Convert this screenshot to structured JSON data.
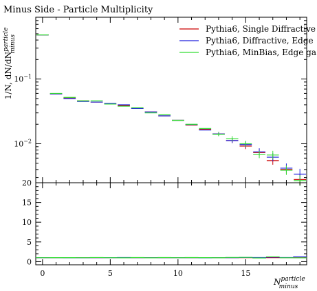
{
  "chart_data": [
    {
      "type": "line",
      "title": "Minus Side - Particle Multiplicity",
      "ylabel_parts": [
        "1/N, dN/dN",
        "particle",
        "minus"
      ],
      "xlabel_parts": [
        "N",
        "particle",
        "minus"
      ],
      "yscale": "log",
      "xlim": [
        -0.5,
        19.5
      ],
      "ylim": [
        0.0025,
        0.9
      ],
      "yticks": [
        {
          "value": 0.1,
          "base": "10",
          "exp": "−1"
        },
        {
          "value": 0.01,
          "base": "10",
          "exp": "−2"
        }
      ],
      "legend_position": "top-right",
      "series": [
        {
          "name": "Pythia6, Single Diffractive",
          "color": "#cc0000",
          "x": [
            0,
            1,
            2,
            3,
            4,
            5,
            6,
            7,
            8,
            9,
            10,
            11,
            12,
            13,
            14,
            15,
            16,
            17,
            18,
            19
          ],
          "y": [
            0.48,
            0.059,
            0.051,
            0.046,
            0.044,
            0.041,
            0.039,
            0.035,
            0.031,
            0.027,
            0.023,
            0.0195,
            0.0168,
            0.0142,
            0.0112,
            0.0092,
            0.0073,
            0.0055,
            0.004,
            0.0028
          ]
        },
        {
          "name": "Pythia6, Diffractive, Edge",
          "color": "#2222dd",
          "x": [
            0,
            1,
            2,
            3,
            4,
            5,
            6,
            7,
            8,
            9,
            10,
            11,
            12,
            13,
            14,
            15,
            16,
            17,
            18,
            19
          ],
          "y": [
            0.48,
            0.059,
            0.05,
            0.045,
            0.044,
            0.042,
            0.04,
            0.035,
            0.031,
            0.027,
            0.023,
            0.0198,
            0.0163,
            0.0142,
            0.0112,
            0.0097,
            0.0075,
            0.0062,
            0.0042,
            0.0034
          ]
        },
        {
          "name": "Pythia6, MinBias, Edge ga",
          "color": "#33dd33",
          "x": [
            0,
            1,
            2,
            3,
            4,
            5,
            6,
            7,
            8,
            9,
            10,
            11,
            12,
            13,
            14,
            15,
            16,
            17,
            18,
            19
          ],
          "y": [
            0.48,
            0.06,
            0.052,
            0.046,
            0.046,
            0.041,
            0.038,
            0.036,
            0.03,
            0.028,
            0.023,
            0.02,
            0.0172,
            0.014,
            0.012,
            0.01,
            0.0068,
            0.0067,
            0.0039,
            0.0027
          ]
        }
      ]
    },
    {
      "type": "line",
      "xlim": [
        -0.5,
        19.5
      ],
      "ylim": [
        -0.8,
        20
      ],
      "yticks": [
        0,
        5,
        10,
        15,
        20
      ],
      "xticks": [
        0,
        5,
        10,
        15
      ],
      "series": [
        {
          "name": "Pythia6, Single Diffractive",
          "color": "#cc0000",
          "x": [
            0,
            1,
            2,
            3,
            4,
            5,
            6,
            7,
            8,
            9,
            10,
            11,
            12,
            13,
            14,
            15,
            16,
            17,
            18,
            19
          ],
          "y": [
            1,
            1,
            1,
            1,
            1,
            1,
            1,
            1,
            1,
            1,
            1,
            1,
            1,
            1,
            1,
            1,
            1,
            1,
            1,
            1
          ]
        },
        {
          "name": "Pythia6, Diffractive, Edge",
          "color": "#2222dd",
          "x": [
            0,
            1,
            2,
            3,
            4,
            5,
            6,
            7,
            8,
            9,
            10,
            11,
            12,
            13,
            14,
            15,
            16,
            17,
            18,
            19
          ],
          "y": [
            1,
            1,
            0.98,
            0.98,
            1,
            1.02,
            1.03,
            1,
            1,
            1,
            1,
            1.02,
            0.97,
            1,
            1,
            1.05,
            1.03,
            1.13,
            1.05,
            1.21
          ]
        },
        {
          "name": "Pythia6, MinBias, Edge ga",
          "color": "#33dd33",
          "x": [
            0,
            1,
            2,
            3,
            4,
            5,
            6,
            7,
            8,
            9,
            10,
            11,
            12,
            13,
            14,
            15,
            16,
            17,
            18,
            19
          ],
          "y": [
            1,
            1.02,
            1.02,
            1,
            1.05,
            1,
            0.97,
            1.03,
            0.97,
            1.04,
            1,
            1.03,
            1.02,
            0.99,
            1.07,
            1.09,
            0.93,
            1.22,
            0.98,
            0.96
          ]
        }
      ]
    }
  ]
}
